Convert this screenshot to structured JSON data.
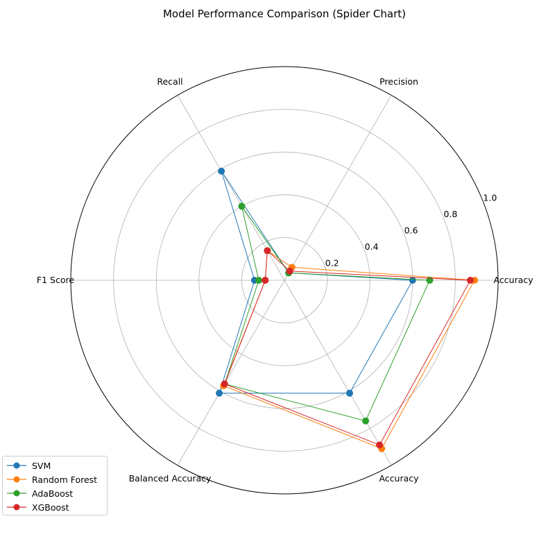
{
  "chart_data": {
    "type": "radar",
    "title": "Model Performance Comparison (Spider Chart)",
    "axes": [
      "Accuracy",
      "Precision",
      "Recall",
      "F1 Score",
      "Balanced Accuracy",
      "Accuracy"
    ],
    "rlim": [
      0,
      1.0
    ],
    "rticks": [
      0.2,
      0.4,
      0.6,
      0.8,
      1.0
    ],
    "rtick_labels": [
      "0.2",
      "0.4",
      "0.6",
      "0.8",
      "1.0"
    ],
    "grid": true,
    "legend_position": "bottom-left",
    "series": [
      {
        "name": "SVM",
        "color": "#1f77b4",
        "values": [
          0.6,
          0.04,
          0.59,
          0.14,
          0.61,
          0.61
        ]
      },
      {
        "name": "Random Forest",
        "color": "#ff7f0e",
        "values": [
          0.89,
          0.07,
          0.16,
          0.09,
          0.57,
          0.91
        ]
      },
      {
        "name": "AdaBoost",
        "color": "#2ca02c",
        "values": [
          0.68,
          0.04,
          0.4,
          0.12,
          0.56,
          0.76
        ]
      },
      {
        "name": "XGBoost",
        "color": "#d62728",
        "values": [
          0.87,
          0.05,
          0.16,
          0.09,
          0.56,
          0.89
        ]
      }
    ]
  }
}
